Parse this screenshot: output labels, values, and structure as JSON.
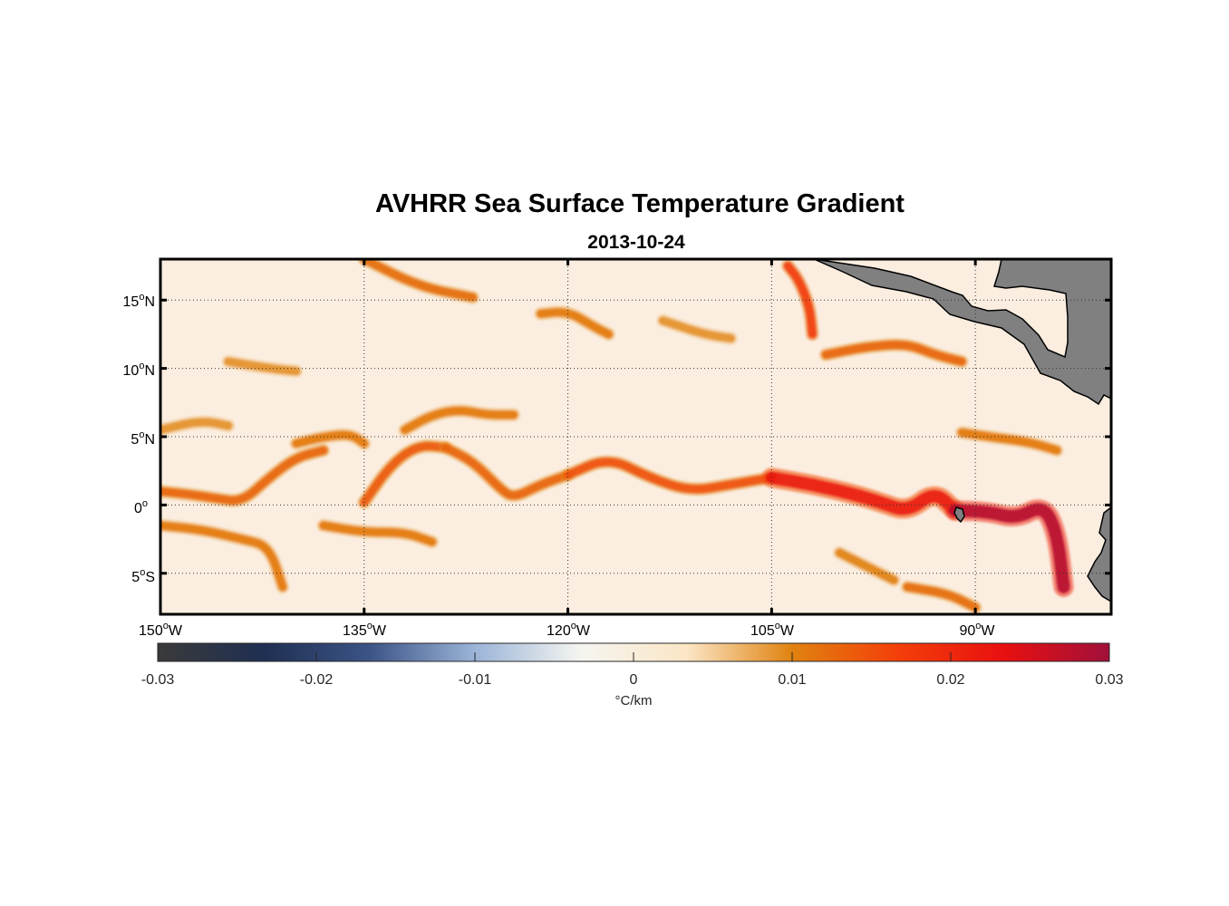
{
  "title": "AVHRR Sea Surface Temperature Gradient",
  "date": "2013-10-24",
  "map": {
    "lon_range": [
      -150,
      -80
    ],
    "lat_range": [
      -8,
      18
    ],
    "lat_ticks": [
      {
        "value": 15,
        "deg": "15",
        "hemi": "N"
      },
      {
        "value": 10,
        "deg": "10",
        "hemi": "N"
      },
      {
        "value": 5,
        "deg": "5",
        "hemi": "N"
      },
      {
        "value": 0,
        "deg": "0",
        "hemi": ""
      },
      {
        "value": -5,
        "deg": "5",
        "hemi": "S"
      }
    ],
    "lon_ticks": [
      {
        "value": -150,
        "deg": "150",
        "hemi": "W"
      },
      {
        "value": -135,
        "deg": "135",
        "hemi": "W"
      },
      {
        "value": -120,
        "deg": "120",
        "hemi": "W"
      },
      {
        "value": -105,
        "deg": "105",
        "hemi": "W"
      },
      {
        "value": -90,
        "deg": "90",
        "hemi": "W"
      }
    ],
    "land_color": "#808080",
    "background_color": "#fbeee0",
    "grid": "dotted"
  },
  "colorbar": {
    "range": [
      -0.03,
      0.03
    ],
    "ticks": [
      {
        "value": -0.03,
        "label": "-0.03"
      },
      {
        "value": -0.02,
        "label": "-0.02"
      },
      {
        "value": -0.01,
        "label": "-0.01"
      },
      {
        "value": 0,
        "label": "0"
      },
      {
        "value": 0.01,
        "label": "0.01"
      },
      {
        "value": 0.02,
        "label": "0.02"
      },
      {
        "value": 0.03,
        "label": "0.03"
      }
    ],
    "unit": "°C/km",
    "colors": [
      "#3a3a3a",
      "#1f2f52",
      "#3b5486",
      "#9bb4d8",
      "#f5f5f0",
      "#fbe6c6",
      "#e0820f",
      "#f43f0a",
      "#e81010",
      "#a0103a"
    ]
  },
  "fronts": [
    {
      "lons": [
        -150,
        -148,
        -146,
        -144,
        -142,
        -140,
        -138
      ],
      "lats": [
        1,
        0.8,
        0.5,
        0.2,
        2,
        3.5,
        4
      ],
      "strength": 0.013
    },
    {
      "lons": [
        -140,
        -138,
        -136,
        -135
      ],
      "lats": [
        4.5,
        5,
        5.2,
        4.5
      ],
      "strength": 0.011
    },
    {
      "lons": [
        -135,
        -133,
        -131,
        -129
      ],
      "lats": [
        0.2,
        3,
        4.4,
        4.2
      ],
      "strength": 0.014
    },
    {
      "lons": [
        -129,
        -127,
        -125,
        -124,
        -122,
        -120
      ],
      "lats": [
        4.2,
        3.2,
        1.2,
        0.5,
        1.5,
        2.2
      ],
      "strength": 0.013
    },
    {
      "lons": [
        -132,
        -130,
        -128,
        -126,
        -124
      ],
      "lats": [
        5.5,
        6.6,
        7,
        6.6,
        6.6
      ],
      "strength": 0.011
    },
    {
      "lons": [
        -120,
        -117,
        -114,
        -111,
        -108,
        -105
      ],
      "lats": [
        2.2,
        3.5,
        2,
        1,
        1.5,
        2
      ],
      "strength": 0.015
    },
    {
      "lons": [
        -105,
        -102,
        -99,
        -97,
        -95,
        -93,
        -91.5
      ],
      "lats": [
        2,
        1.5,
        0.8,
        0.2,
        -0.5,
        1,
        -0.4
      ],
      "strength": 0.022
    },
    {
      "lons": [
        -91.5,
        -89,
        -87,
        -85,
        -84,
        -83.5
      ],
      "lats": [
        -0.4,
        -0.5,
        -1,
        0,
        -2,
        -6
      ],
      "strength": 0.028
    },
    {
      "lons": [
        -150,
        -147,
        -144,
        -142,
        -141
      ],
      "lats": [
        -1.5,
        -1.8,
        -2.5,
        -3,
        -6
      ],
      "strength": 0.011
    },
    {
      "lons": [
        -138,
        -135,
        -132,
        -130
      ],
      "lats": [
        -1.5,
        -2,
        -2,
        -2.7
      ],
      "strength": 0.011
    },
    {
      "lons": [
        -135,
        -131,
        -127
      ],
      "lats": [
        18,
        16,
        15.2
      ],
      "strength": 0.012
    },
    {
      "lons": [
        -122,
        -120,
        -118,
        -117
      ],
      "lats": [
        14,
        14.2,
        13,
        12.5
      ],
      "strength": 0.011
    },
    {
      "lons": [
        -103.8,
        -103,
        -102.2,
        -102
      ],
      "lats": [
        17.5,
        16.5,
        14.5,
        12.5
      ],
      "strength": 0.017
    },
    {
      "lons": [
        -101,
        -98,
        -95,
        -93,
        -91
      ],
      "lats": [
        11,
        11.6,
        11.8,
        11,
        10.5
      ],
      "strength": 0.013
    },
    {
      "lons": [
        -91,
        -89,
        -86,
        -84
      ],
      "lats": [
        5.3,
        5,
        4.6,
        4
      ],
      "strength": 0.011
    },
    {
      "lons": [
        -100,
        -98,
        -96
      ],
      "lats": [
        -3.5,
        -4.5,
        -5.5
      ],
      "strength": 0.01
    },
    {
      "lons": [
        -95,
        -92,
        -90
      ],
      "lats": [
        -6,
        -6.5,
        -7.5
      ],
      "strength": 0.012
    },
    {
      "lons": [
        -113,
        -110,
        -108
      ],
      "lats": [
        13.5,
        12.5,
        12.2
      ],
      "strength": 0.009
    },
    {
      "lons": [
        -145,
        -142,
        -140
      ],
      "lats": [
        10.5,
        10,
        9.8
      ],
      "strength": 0.009
    },
    {
      "lons": [
        -150,
        -147,
        -145
      ],
      "lats": [
        5.5,
        6.2,
        5.8
      ],
      "strength": 0.009
    }
  ]
}
